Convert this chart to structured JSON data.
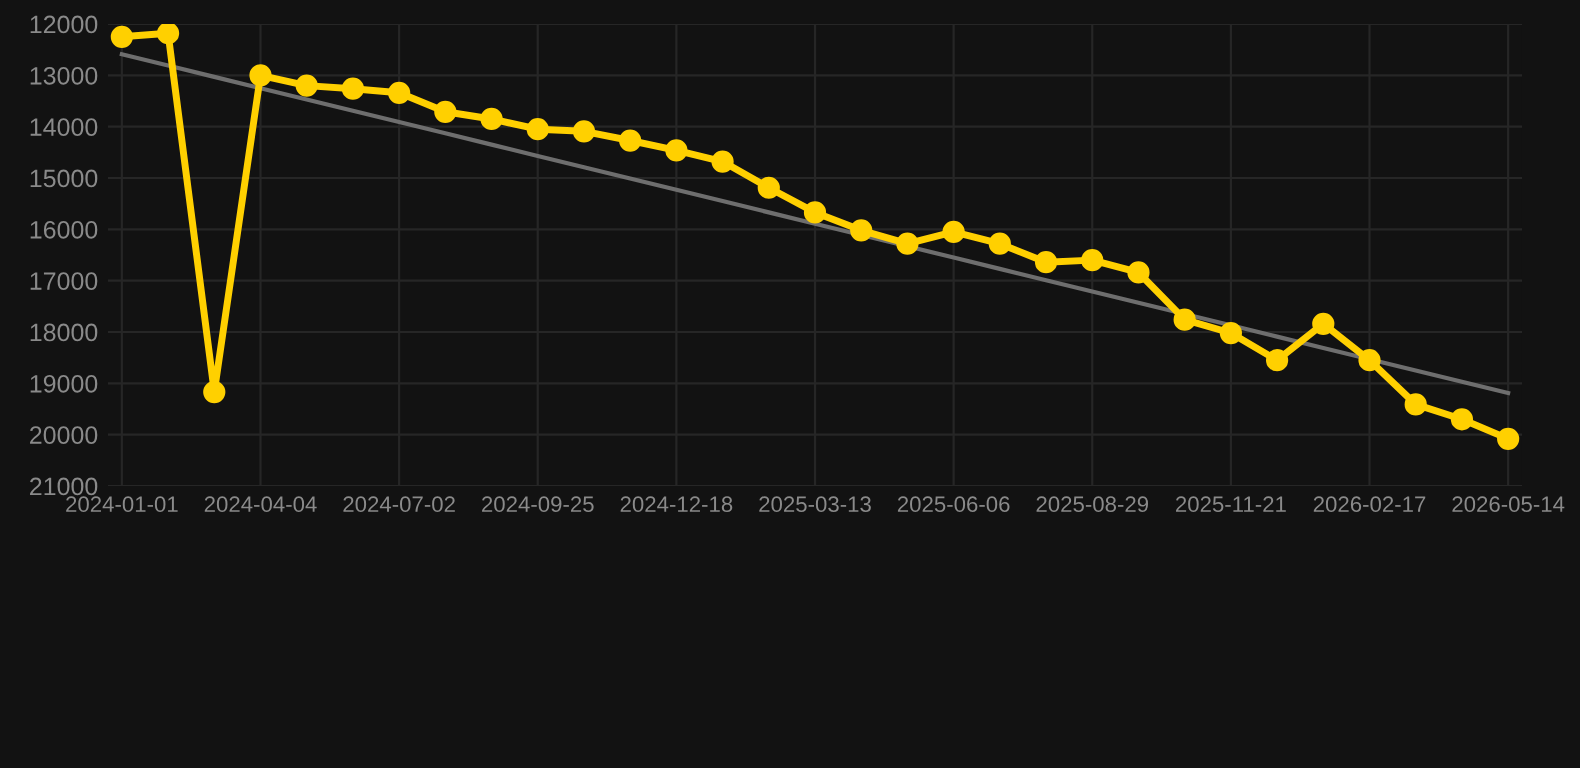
{
  "chart_data": {
    "type": "line",
    "categories": [
      "2024-01-01",
      null,
      null,
      "2024-04-04",
      null,
      null,
      "2024-07-02",
      null,
      null,
      "2024-09-25",
      null,
      null,
      "2024-12-18",
      null,
      null,
      "2025-03-13",
      null,
      null,
      "2025-06-06",
      null,
      null,
      "2025-08-29",
      null,
      null,
      "2025-11-21",
      null,
      null,
      "2026-02-17",
      null,
      null,
      "2026-05-14"
    ],
    "series": [
      {
        "color": "#ffd000",
        "marker": "circle",
        "values": [
          12250,
          12180,
          19170,
          13000,
          13200,
          13260,
          13340,
          13710,
          13850,
          14050,
          14090,
          14270,
          14460,
          14680,
          15190,
          15670,
          16020,
          16280,
          16050,
          16280,
          16640,
          16600,
          16840,
          17760,
          18020,
          18550,
          17840,
          18550,
          19410,
          19700,
          20080
        ]
      },
      {
        "type": "line",
        "color": "#6e6e6e",
        "marker": "none",
        "values": [
          12590,
          12810,
          13030,
          13250,
          13470,
          13690,
          13910,
          14130,
          14350,
          14570,
          14790,
          15010,
          15230,
          15450,
          15670,
          15890,
          16110,
          16330,
          16550,
          16770,
          16990,
          17210,
          17430,
          17650,
          17870,
          18090,
          18310,
          18530,
          18750,
          18970,
          19190
        ]
      }
    ],
    "ylim": [
      21000,
      12000
    ],
    "yticks": [
      12000,
      13000,
      14000,
      15000,
      16000,
      17000,
      18000,
      19000,
      20000,
      21000
    ],
    "grid": true
  }
}
